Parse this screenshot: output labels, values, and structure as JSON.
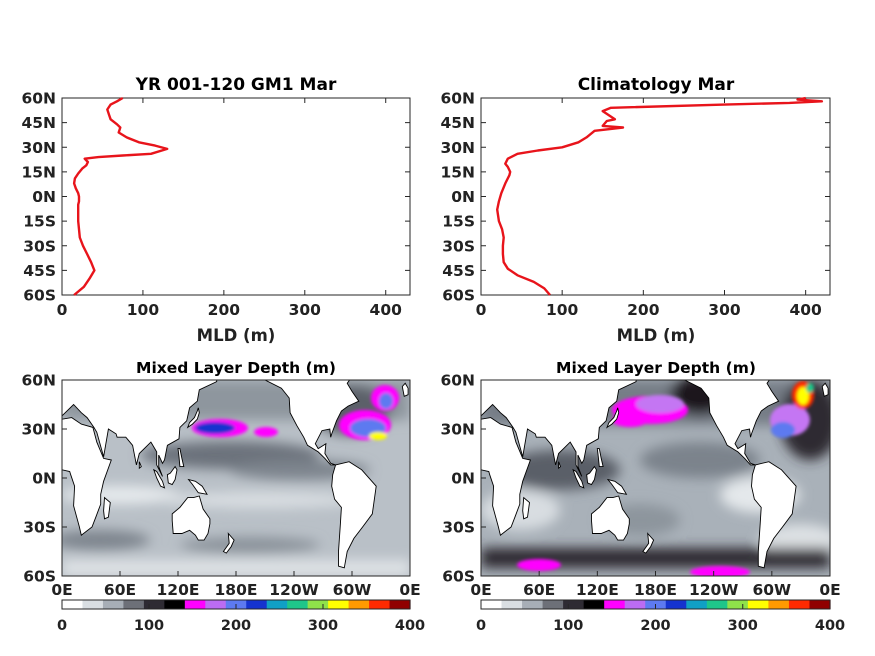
{
  "chart_data": [
    {
      "type": "line",
      "title": "YR 001-120 GM1 Mar",
      "xlabel": "MLD (m)",
      "ylabel": "",
      "xlim": [
        0,
        430
      ],
      "ylim": [
        -60,
        60
      ],
      "xticks": [
        "0",
        "100",
        "200",
        "300",
        "400"
      ],
      "yticks": [
        "60N",
        "45N",
        "30N",
        "15N",
        "0N",
        "15S",
        "30S",
        "45S",
        "60S"
      ],
      "line_color": "#e8141b",
      "series": [
        {
          "x": [
            15,
            27,
            34,
            40,
            36,
            31,
            26,
            22,
            21,
            20,
            20,
            20,
            21,
            21,
            20,
            17,
            15,
            16,
            20,
            25,
            30,
            32,
            30,
            28,
            45,
            75,
            110,
            130,
            115,
            95,
            80,
            70,
            72,
            68,
            60,
            58,
            56,
            60,
            68,
            75
          ],
          "y": [
            -60,
            -55,
            -50,
            -45,
            -40,
            -35,
            -30,
            -25,
            -20,
            -15,
            -10,
            -5,
            -3,
            0,
            2,
            5,
            8,
            11,
            14,
            17,
            19,
            21,
            22,
            23,
            24,
            25,
            26,
            29,
            31,
            33,
            36,
            39,
            42,
            44,
            47,
            50,
            53,
            56,
            58,
            60
          ]
        }
      ]
    },
    {
      "type": "line",
      "title": "Climatology Mar",
      "xlabel": "MLD (m)",
      "ylabel": "",
      "xlim": [
        0,
        430
      ],
      "ylim": [
        -60,
        60
      ],
      "xticks": [
        "0",
        "100",
        "200",
        "300",
        "400"
      ],
      "yticks": [
        "60N",
        "45N",
        "30N",
        "15N",
        "0N",
        "15S",
        "30S",
        "45S",
        "60S"
      ],
      "line_color": "#e8141b",
      "series": [
        {
          "x": [
            85,
            78,
            65,
            45,
            33,
            28,
            27,
            27,
            28,
            26,
            22,
            20,
            22,
            25,
            30,
            35,
            36,
            33,
            30,
            33,
            45,
            70,
            100,
            120,
            130,
            135,
            140,
            175,
            150,
            155,
            165,
            150,
            160,
            300,
            380,
            420,
            390,
            400
          ],
          "y": [
            -60,
            -56,
            -52,
            -48,
            -44,
            -40,
            -35,
            -30,
            -25,
            -20,
            -15,
            -8,
            -3,
            2,
            8,
            13,
            15,
            18,
            20,
            23,
            26,
            28,
            30,
            33,
            36,
            38,
            40,
            42,
            43,
            46,
            47,
            52,
            54,
            56,
            57,
            58,
            59,
            60
          ]
        }
      ]
    },
    {
      "type": "heatmap",
      "title": "Mixed Layer Depth (m)",
      "xticks": [
        "0E",
        "60E",
        "120E",
        "180E",
        "120W",
        "60W",
        "0E"
      ],
      "yticks": [
        "60N",
        "30N",
        "0N",
        "30S",
        "60S"
      ],
      "xlim": [
        0,
        360
      ],
      "ylim": [
        -60,
        60
      ],
      "colorbar": {
        "range": [
          0,
          400
        ],
        "ticks": [
          "0",
          "100",
          "200",
          "300",
          "400"
        ],
        "colors": [
          "#ffffff",
          "#d9dee2",
          "#a7aeb6",
          "#6d7078",
          "#2e2b33",
          "#000000",
          "#ff00ff",
          "#bb6cf2",
          "#5d7af0",
          "#1533cf",
          "#10a0c5",
          "#1ec68a",
          "#8fe24a",
          "#ffff00",
          "#ff9a00",
          "#ff2a00",
          "#900000"
        ]
      }
    },
    {
      "type": "heatmap",
      "title": "Mixed Layer Depth (m)",
      "xticks": [
        "0E",
        "60E",
        "120E",
        "180E",
        "120W",
        "60W",
        "0E"
      ],
      "yticks": [
        "60N",
        "30N",
        "0N",
        "30S",
        "60S"
      ],
      "xlim": [
        0,
        360
      ],
      "ylim": [
        -60,
        60
      ],
      "colorbar": {
        "range": [
          0,
          400
        ],
        "ticks": [
          "0",
          "100",
          "200",
          "300",
          "400"
        ],
        "colors": [
          "#ffffff",
          "#d9dee2",
          "#a7aeb6",
          "#6d7078",
          "#2e2b33",
          "#000000",
          "#ff00ff",
          "#bb6cf2",
          "#5d7af0",
          "#1533cf",
          "#10a0c5",
          "#1ec68a",
          "#8fe24a",
          "#ffff00",
          "#ff9a00",
          "#ff2a00",
          "#900000"
        ]
      }
    }
  ]
}
